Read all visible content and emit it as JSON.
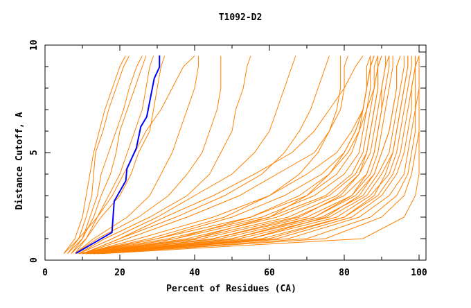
{
  "chart_data": {
    "type": "line",
    "title": "T1092-D2",
    "xlabel": "Percent of Residues (CA)",
    "ylabel": "Distance Cutoff, A",
    "xlim": [
      0,
      101.85
    ],
    "ylim": [
      0,
      10
    ],
    "x_ticks": [
      0,
      20,
      40,
      60,
      80,
      100
    ],
    "y_ticks": [
      0,
      5,
      10
    ],
    "grid": false,
    "colors": {
      "models": "#ff8000",
      "highlight": "#0000ff"
    },
    "y_cutoffs": [
      0.3,
      1,
      2,
      3,
      4,
      5,
      6,
      7,
      8,
      9,
      9.5
    ],
    "series": [
      {
        "x": [
          5,
          8,
          10,
          11,
          12,
          13,
          14.5,
          16,
          18,
          20,
          21.5
        ]
      },
      {
        "x": [
          6,
          9,
          11,
          12.5,
          13,
          13.5,
          15.5,
          17,
          19,
          21,
          22.5
        ]
      },
      {
        "x": [
          7,
          10,
          12,
          14,
          15,
          17,
          19,
          21,
          22.5,
          24.5,
          26
        ]
      },
      {
        "x": [
          6,
          10,
          13,
          15,
          17.5,
          19,
          20,
          22,
          24,
          26,
          27
        ]
      },
      {
        "x": [
          8,
          11,
          14,
          17,
          20,
          22,
          24,
          26,
          27,
          28,
          29
        ]
      },
      {
        "x": [
          7,
          11,
          15,
          20,
          23,
          25,
          28,
          29,
          30,
          31,
          32
        ]
      },
      {
        "x": [
          5,
          9,
          14,
          18,
          21,
          24,
          27,
          31,
          34,
          37,
          40
        ]
      },
      {
        "x": [
          8,
          13,
          22,
          28,
          31,
          34,
          36,
          38,
          40,
          41,
          41
        ]
      },
      {
        "x": [
          8,
          14,
          25,
          33,
          38,
          42,
          44,
          46,
          47,
          47,
          47
        ]
      },
      {
        "x": [
          9,
          16,
          28,
          38,
          44,
          47,
          50,
          51,
          53,
          54,
          55
        ]
      },
      {
        "x": [
          9,
          18,
          30,
          40,
          50,
          56,
          60,
          62,
          64,
          66,
          67
        ]
      },
      {
        "x": [
          10,
          20,
          35,
          48,
          58,
          64,
          68,
          71,
          73,
          75,
          76
        ]
      },
      {
        "x": [
          10,
          22,
          38,
          52,
          62,
          72,
          76,
          78,
          79,
          79,
          79
        ]
      },
      {
        "x": [
          10,
          25,
          45,
          60,
          68,
          73,
          76,
          79,
          80,
          80,
          81
        ]
      },
      {
        "x": [
          10,
          20,
          32,
          45,
          56,
          66,
          72,
          76,
          80,
          83,
          85
        ]
      },
      {
        "x": [
          9,
          30,
          55,
          70,
          78,
          82,
          84,
          85,
          86,
          86,
          87
        ]
      },
      {
        "x": [
          9,
          33,
          58,
          72,
          80,
          84,
          85,
          86,
          87,
          87,
          88
        ]
      },
      {
        "x": [
          10,
          35,
          60,
          75,
          82,
          85,
          86,
          87,
          88,
          88,
          89
        ]
      },
      {
        "x": [
          10,
          38,
          62,
          76,
          83,
          86,
          87,
          88,
          89,
          89,
          90
        ]
      },
      {
        "x": [
          10,
          40,
          65,
          78,
          84,
          87,
          88,
          89,
          90,
          91,
          91
        ]
      },
      {
        "x": [
          11,
          42,
          67,
          80,
          86,
          88,
          89,
          90,
          91,
          92,
          92
        ]
      },
      {
        "x": [
          11,
          45,
          70,
          82,
          87,
          89,
          90,
          91,
          92,
          93,
          93
        ]
      },
      {
        "x": [
          11,
          47,
          72,
          83,
          88,
          90,
          92,
          93,
          94,
          94,
          95
        ]
      },
      {
        "x": [
          12,
          50,
          74,
          85,
          89,
          92,
          93,
          94,
          95,
          96,
          96
        ]
      },
      {
        "x": [
          12,
          52,
          76,
          86,
          90,
          93,
          94,
          95,
          96,
          97,
          97
        ]
      },
      {
        "x": [
          12,
          55,
          78,
          87,
          92,
          94,
          95,
          96,
          97,
          98,
          98
        ]
      },
      {
        "x": [
          13,
          58,
          80,
          89,
          93,
          95,
          96,
          97,
          98,
          99,
          99
        ]
      },
      {
        "x": [
          13,
          62,
          82,
          90,
          94,
          96,
          97,
          98,
          98,
          99,
          99
        ]
      },
      {
        "x": [
          13,
          65,
          84,
          92,
          96,
          97,
          98,
          99,
          99,
          99,
          100
        ]
      },
      {
        "x": [
          14,
          70,
          87,
          94,
          97,
          98,
          99,
          99,
          100,
          100,
          100
        ]
      },
      {
        "x": [
          14,
          75,
          90,
          96,
          98,
          99,
          100,
          100,
          100,
          100,
          100
        ]
      },
      {
        "x": [
          15,
          85,
          96,
          99,
          100,
          100,
          100,
          100,
          100,
          100,
          100
        ]
      },
      {
        "x": [
          12,
          45,
          68,
          79,
          84,
          86,
          87,
          88,
          89,
          89,
          90
        ]
      },
      {
        "x": [
          11,
          40,
          60,
          70,
          76,
          80,
          83,
          85,
          86,
          87,
          88
        ]
      },
      {
        "x": [
          10,
          35,
          55,
          68,
          76,
          81,
          84,
          86,
          88,
          89,
          89
        ]
      },
      {
        "x": [
          12,
          50,
          72,
          82,
          86,
          88,
          89,
          90,
          90,
          91,
          92
        ]
      },
      {
        "x": [
          13,
          55,
          75,
          84,
          88,
          90,
          92,
          93,
          94,
          94,
          95
        ]
      },
      {
        "x": [
          10,
          30,
          50,
          64,
          74,
          80,
          83,
          85,
          86,
          87,
          87
        ]
      },
      {
        "x": [
          9,
          28,
          48,
          60,
          70,
          78,
          82,
          85,
          86,
          87,
          88
        ]
      },
      {
        "x": [
          13,
          60,
          80,
          88,
          91,
          93,
          94,
          95,
          96,
          97,
          97
        ]
      }
    ],
    "highlight_series": {
      "x": [
        8.3,
        17.9,
        18.5,
        21.6,
        21.9,
        24.4,
        25.6,
        27.2,
        29.2,
        30.6,
        30.6
      ],
      "y": [
        0.32,
        1.29,
        2.74,
        3.69,
        4.25,
        5.2,
        6.2,
        6.67,
        8.45,
        8.98,
        9.52
      ]
    }
  }
}
